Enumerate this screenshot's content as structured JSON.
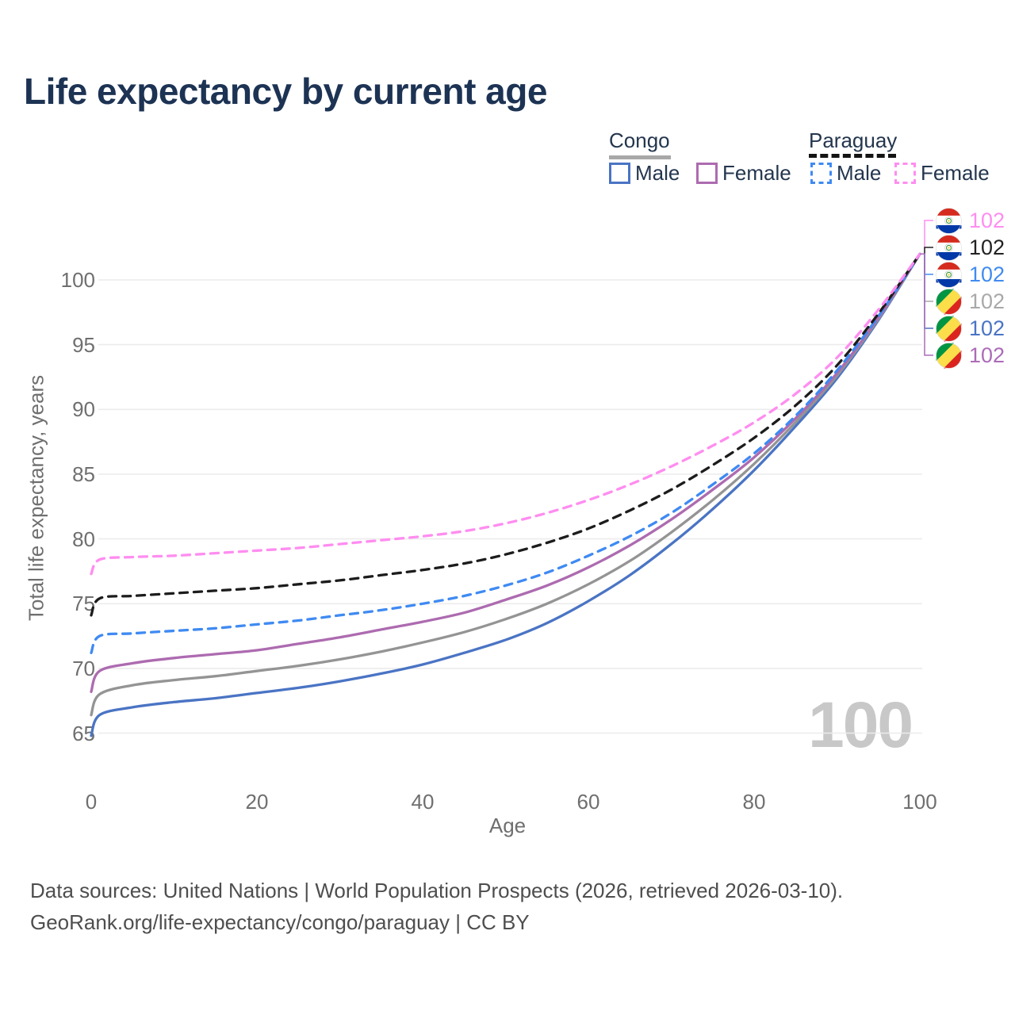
{
  "title": "Life expectancy by current age",
  "legend": {
    "groups": [
      {
        "label": "Congo",
        "line_style": "solid",
        "line_color": "#a8a8a8"
      },
      {
        "label": "Paraguay",
        "line_style": "dashed",
        "line_color": "#141414"
      }
    ],
    "items": [
      {
        "group": "Congo",
        "label": "Male",
        "color": "#4a74c4",
        "dashed": false
      },
      {
        "group": "Congo",
        "label": "Female",
        "color": "#ad6bb0",
        "dashed": false
      },
      {
        "group": "Paraguay",
        "label": "Male",
        "color": "#3f8af2",
        "dashed": true
      },
      {
        "group": "Paraguay",
        "label": "Female",
        "color": "#ff8df0",
        "dashed": true
      }
    ]
  },
  "watermark_age": "100",
  "end_labels": [
    {
      "country": "Paraguay",
      "flag_icon": "paraguay-flag-icon",
      "value": "102",
      "color": "#ff8df0",
      "series": "paraguay_female"
    },
    {
      "country": "Paraguay",
      "flag_icon": "paraguay-flag-icon",
      "value": "102",
      "color": "#222222",
      "series": "paraguay_total"
    },
    {
      "country": "Paraguay",
      "flag_icon": "paraguay-flag-icon",
      "value": "102",
      "color": "#418bf0",
      "series": "paraguay_male"
    },
    {
      "country": "Congo",
      "flag_icon": "congo-flag-icon",
      "value": "102",
      "color": "#a9a9a9",
      "series": "congo_total"
    },
    {
      "country": "Congo",
      "flag_icon": "congo-flag-icon",
      "value": "102",
      "color": "#4a74c4",
      "series": "congo_male"
    },
    {
      "country": "Congo",
      "flag_icon": "congo-flag-icon",
      "value": "102",
      "color": "#ab6cb8",
      "series": "congo_female"
    }
  ],
  "footer": {
    "line1": "Data sources: United Nations | World Population Prospects (2026, retrieved 2026-03-10).",
    "line2": "GeoRank.org/life-expectancy/congo/paraguay | CC BY"
  },
  "chart_data": {
    "type": "line",
    "title": "Life expectancy by current age",
    "xlabel": "Age",
    "ylabel": "Total life expectancy, years",
    "xlim": [
      0,
      100
    ],
    "ylim": [
      63,
      104
    ],
    "xticks": [
      0,
      20,
      40,
      60,
      80,
      100
    ],
    "yticks": [
      65,
      70,
      75,
      80,
      85,
      90,
      95,
      100
    ],
    "grid": "horizontal-only",
    "legend_position": "top-right",
    "x": [
      0,
      1,
      5,
      10,
      15,
      20,
      25,
      30,
      35,
      40,
      45,
      50,
      55,
      60,
      65,
      70,
      75,
      80,
      85,
      90,
      95,
      100
    ],
    "series": [
      {
        "id": "congo_male",
        "name": "Congo Male",
        "color": "#4a74c4",
        "dashed": false,
        "values": [
          64.8,
          66.4,
          67.0,
          67.4,
          67.7,
          68.1,
          68.5,
          69.0,
          69.6,
          70.3,
          71.2,
          72.2,
          73.5,
          75.2,
          77.2,
          79.6,
          82.3,
          85.3,
          88.7,
          92.4,
          96.9,
          102
        ]
      },
      {
        "id": "congo_total",
        "name": "Congo Total",
        "color": "#949494",
        "dashed": false,
        "values": [
          66.4,
          68.0,
          68.7,
          69.1,
          69.4,
          69.8,
          70.2,
          70.7,
          71.3,
          72.0,
          72.8,
          73.8,
          75.0,
          76.5,
          78.3,
          80.5,
          83.0,
          85.8,
          89.0,
          92.6,
          97.0,
          102
        ]
      },
      {
        "id": "congo_female",
        "name": "Congo Female",
        "color": "#ad6bb0",
        "dashed": false,
        "values": [
          68.2,
          69.8,
          70.4,
          70.8,
          71.1,
          71.4,
          71.9,
          72.4,
          73.0,
          73.6,
          74.3,
          75.3,
          76.4,
          77.8,
          79.5,
          81.5,
          83.8,
          86.3,
          89.3,
          92.8,
          97.1,
          102
        ]
      },
      {
        "id": "paraguay_male",
        "name": "Paraguay Male",
        "color": "#3f8af2",
        "dashed": true,
        "values": [
          71.2,
          72.5,
          72.7,
          72.9,
          73.1,
          73.4,
          73.7,
          74.1,
          74.5,
          75.0,
          75.6,
          76.4,
          77.4,
          78.7,
          80.2,
          82.0,
          84.2,
          86.6,
          89.5,
          93.0,
          97.2,
          102
        ]
      },
      {
        "id": "paraguay_total",
        "name": "Paraguay Total",
        "color": "#1c1c1c",
        "dashed": true,
        "values": [
          74.1,
          75.4,
          75.6,
          75.8,
          76.0,
          76.2,
          76.5,
          76.8,
          77.2,
          77.6,
          78.1,
          78.8,
          79.7,
          80.8,
          82.2,
          83.8,
          85.7,
          87.8,
          90.3,
          93.4,
          97.4,
          102
        ]
      },
      {
        "id": "paraguay_female",
        "name": "Paraguay Female",
        "color": "#ff8df0",
        "dashed": true,
        "values": [
          77.3,
          78.4,
          78.6,
          78.7,
          78.9,
          79.1,
          79.3,
          79.6,
          79.9,
          80.2,
          80.6,
          81.2,
          82.0,
          83.0,
          84.2,
          85.6,
          87.2,
          89.0,
          91.2,
          94.0,
          97.7,
          102
        ]
      }
    ]
  }
}
